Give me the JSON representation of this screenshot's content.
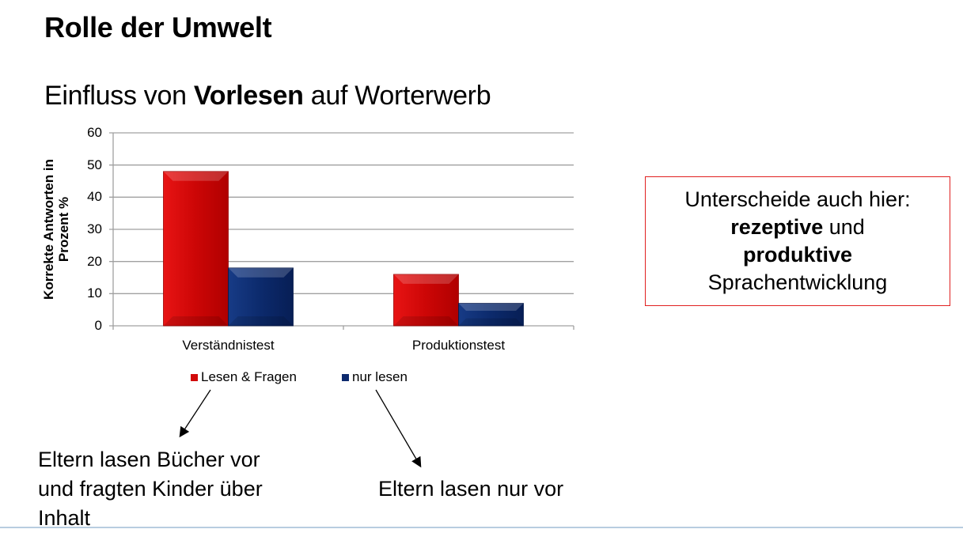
{
  "slide": {
    "title": "Rolle der Umwelt",
    "subtitle": {
      "prefix": "Einfluss von ",
      "bold": "Vorlesen",
      "suffix": " auf Worterwerb"
    },
    "note_box": {
      "line1": "Unterscheide auch hier:",
      "line2_bold": "rezeptive",
      "line2_rest": " und",
      "line3_bold": "produktive",
      "line4": "Sprachentwicklung",
      "border_color": "#e02020"
    },
    "captions": {
      "left_line1": "Eltern lasen Bücher vor",
      "left_line2": "und fragten Kinder über",
      "left_line3": "Inhalt",
      "right": "Eltern lasen nur vor"
    }
  },
  "chart_data": {
    "type": "bar",
    "title": "",
    "xlabel": "",
    "ylabel": "Korrekte Antworten in Prozent %",
    "ylim": [
      0,
      60
    ],
    "yticks": [
      0,
      10,
      20,
      30,
      40,
      50,
      60
    ],
    "grid": true,
    "legend_position": "bottom",
    "categories": [
      "Verständnistest",
      "Produktionstest"
    ],
    "series": [
      {
        "name": "Lesen & Fragen",
        "values": [
          48,
          16
        ],
        "color": "#d10a0a"
      },
      {
        "name": "nur lesen",
        "values": [
          18,
          7
        ],
        "color": "#0d2a6e"
      }
    ]
  }
}
